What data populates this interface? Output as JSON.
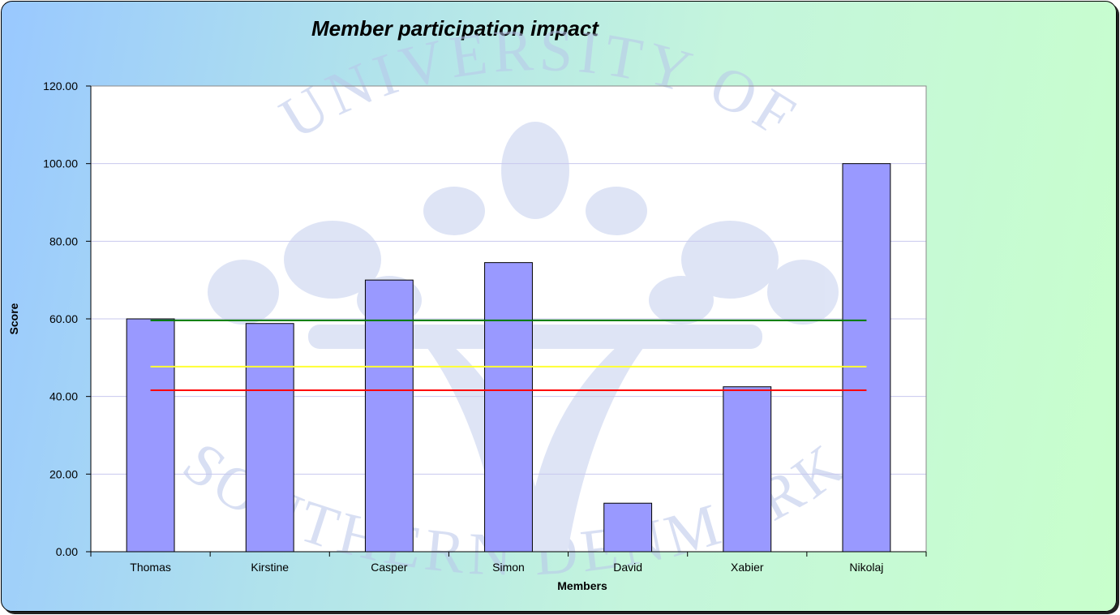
{
  "chart_data": {
    "type": "bar",
    "title": "Member participation impact",
    "xlabel": "Members",
    "ylabel": "Score",
    "categories": [
      "Thomas",
      "Kirstine",
      "Casper",
      "Simon",
      "David",
      "Xabier",
      "Nikolaj"
    ],
    "values": [
      60.0,
      58.8,
      70.0,
      74.5,
      12.5,
      42.5,
      100.0
    ],
    "ylim": [
      0,
      120
    ],
    "yticks": [
      "0.00",
      "20.00",
      "40.00",
      "60.00",
      "80.00",
      "100.00",
      "120.00"
    ],
    "grid": true,
    "bar_color": "#9999ff",
    "reference_lines": [
      {
        "value": 59.6,
        "color": "#007a00"
      },
      {
        "value": 47.7,
        "color": "#ffff33"
      },
      {
        "value": 41.6,
        "color": "#ff0000"
      }
    ],
    "watermark": "UNIVERSITY OF SOUTHERN DENMARK"
  }
}
